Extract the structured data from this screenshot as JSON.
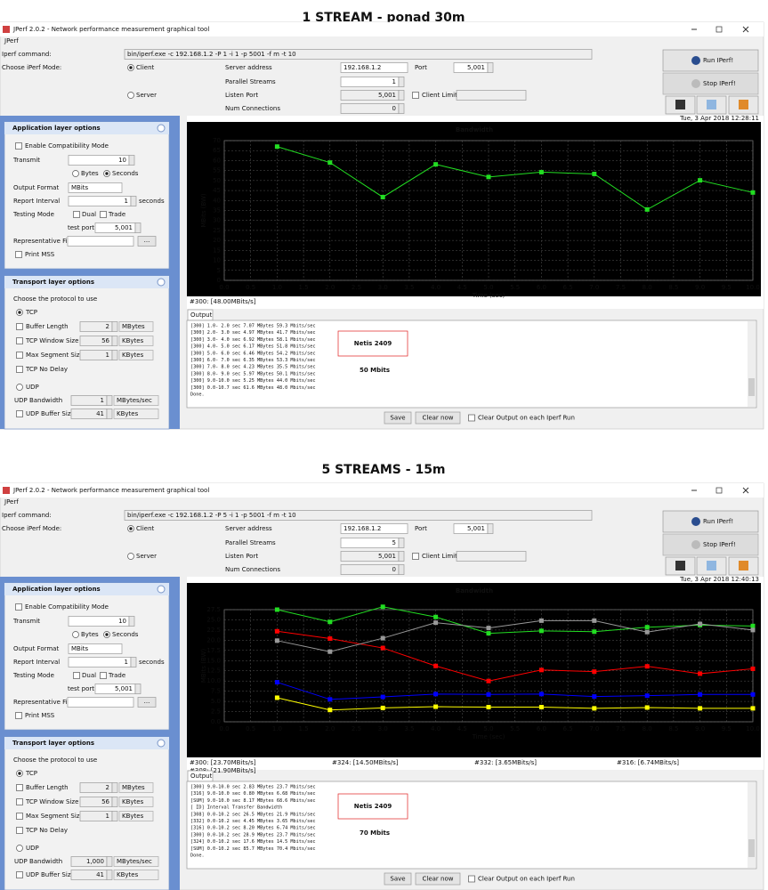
{
  "ui": {
    "app_title": "JPerf 2.0.2 - Network performance measurement graphical tool",
    "menu": "JPerf",
    "command_label": "Iperf command:",
    "mode_label": "Choose iPerf Mode:",
    "client": "Client",
    "server": "Server",
    "server_address": "Server address",
    "port": "Port",
    "parallel_streams": "Parallel Streams",
    "listen_port": "Listen Port",
    "client_limit": "Client Limit",
    "num_connections": "Num Connections",
    "run": "Run IPerf!",
    "stop": "Stop IPerf!",
    "app_layer": "Application layer options",
    "compat": "Enable Compatibility Mode",
    "transmit": "Transmit",
    "bytes": "Bytes",
    "seconds": "Seconds",
    "output_format": "Output Format",
    "mbits": "MBits",
    "report_interval": "Report Interval",
    "seconds_unit": "seconds",
    "testing_mode": "Testing Mode",
    "dual": "Dual",
    "trade": "Trade",
    "test_port": "test port",
    "rep_file": "Representative File",
    "browse": "...",
    "print_mss": "Print MSS",
    "transport": "Transport layer options",
    "choose_protocol": "Choose the protocol to use",
    "tcp": "TCP",
    "buffer_length": "Buffer Length",
    "tcp_window": "TCP Window Size",
    "max_segment": "Max Segment Size",
    "no_delay": "TCP No Delay",
    "udp": "UDP",
    "udp_bandwidth": "UDP Bandwidth",
    "udp_buffer": "UDP Buffer Size",
    "mbytes": "MBytes",
    "kbytes": "KBytes",
    "mbytes_sec": "MBytes/sec",
    "output_tab": "Output",
    "save": "Save",
    "clear": "Clear now",
    "clear_each": "Clear Output on each Iperf Run"
  },
  "windows": [
    {
      "heading": "1 STREAM - ponad 30m",
      "command": "bin/iperf.exe -c 192.168.1.2 -P 1 -i 1 -p 5001 -f m -t 10",
      "server_address": "192.168.1.2",
      "port": "5,001",
      "parallel_streams": "1",
      "listen_port": "5,001",
      "num_connections": "0",
      "transmit": "10",
      "report_interval": "1",
      "test_port": "5,001",
      "buffer_length": "2",
      "tcp_window": "56",
      "max_segment": "1",
      "udp_bandwidth": "1",
      "udp_buffer": "41",
      "timestamp": "Tue, 3 Apr 2018 12:28:11",
      "annotation": [
        "Netis 2409",
        "50 Mbits"
      ],
      "output": [
        "[300]  1.0- 2.0 sec  7.07 MBytes  59.3 Mbits/sec",
        "[300]  2.0- 3.0 sec  4.97 MBytes  41.7 Mbits/sec",
        "[300]  3.0- 4.0 sec  6.92 MBytes  58.1 Mbits/sec",
        "[300]  4.0- 5.0 sec  6.17 MBytes  51.8 Mbits/sec",
        "[300]  5.0- 6.0 sec  6.46 MBytes  54.2 Mbits/sec",
        "[300]  6.0- 7.0 sec  6.35 MBytes  53.3 Mbits/sec",
        "[300]  7.0- 8.0 sec  4.23 MBytes  35.5 Mbits/sec",
        "[300]  8.0- 9.0 sec  5.97 MBytes  50.1 Mbits/sec",
        "[300]  9.0-10.0 sec  5.25 MBytes  44.0 Mbits/sec",
        "[300]  0.0-10.7 sec  61.6 MBytes  48.0 Mbits/sec",
        "Done."
      ]
    },
    {
      "heading": "5 STREAMS - 15m",
      "command": "bin/iperf.exe -c 192.168.1.2 -P 5 -i 1 -p 5001 -f m -t 10",
      "server_address": "192.168.1.2",
      "port": "5,001",
      "parallel_streams": "5",
      "listen_port": "5,001",
      "num_connections": "0",
      "transmit": "10",
      "report_interval": "1",
      "test_port": "5,001",
      "buffer_length": "2",
      "tcp_window": "56",
      "max_segment": "1",
      "udp_bandwidth": "1,000",
      "udp_buffer": "41",
      "timestamp": "Tue, 3 Apr 2018 12:40:13",
      "annotation": [
        "Netis 2409",
        "70 Mbits"
      ],
      "output": [
        "[300]  9.0-10.0 sec  2.83 MBytes  23.7 Mbits/sec",
        "[316]  9.0-10.0 sec  0.80 MBytes  6.68 Mbits/sec",
        "[SUM]  9.0-10.0 sec  8.17 MBytes  68.6 Mbits/sec",
        "[ ID] Interval       Transfer     Bandwidth",
        "[308]  0.0-10.2 sec  26.5 MBytes  21.9 Mbits/sec",
        "[332]  0.0-10.2 sec  4.45 MBytes  3.65 Mbits/sec",
        "[316]  0.0-10.2 sec  8.20 MBytes  6.74 Mbits/sec",
        "[300]  0.0-10.2 sec  28.9 MBytes  23.7 Mbits/sec",
        "[324]  0.0-10.2 sec  17.6 MBytes  14.5 Mbits/sec",
        "[SUM]  0.0-10.2 sec  85.7 MBytes  70.4 Mbits/sec",
        "Done."
      ]
    }
  ],
  "chart_data": [
    {
      "type": "line",
      "title": "Bandwidth",
      "x_label": "Time (sec)",
      "y_label": "MBits (BW)",
      "grid": true,
      "legend": "bottom-left",
      "x": [
        1,
        2,
        3,
        4,
        5,
        6,
        7,
        8,
        9,
        10
      ],
      "xlim": [
        0,
        10
      ],
      "xticks": [
        {
          "value": 0,
          "label": "0.0"
        },
        {
          "value": 0.5,
          "label": "0.5"
        },
        {
          "value": 1,
          "label": "1.0"
        },
        {
          "value": 1.5,
          "label": "1.5"
        },
        {
          "value": 2,
          "label": "2.0"
        },
        {
          "value": 2.5,
          "label": "2.5"
        },
        {
          "value": 3,
          "label": "3.0"
        },
        {
          "value": 3.5,
          "label": "3.5"
        },
        {
          "value": 4,
          "label": "4.0"
        },
        {
          "value": 4.5,
          "label": "4.5"
        },
        {
          "value": 5,
          "label": "5.0"
        },
        {
          "value": 5.5,
          "label": "5.5"
        },
        {
          "value": 6,
          "label": "6.0"
        },
        {
          "value": 6.5,
          "label": "6.5"
        },
        {
          "value": 7,
          "label": "7.0"
        },
        {
          "value": 7.5,
          "label": "7.5"
        },
        {
          "value": 8,
          "label": "8.0"
        },
        {
          "value": 8.5,
          "label": "8.5"
        },
        {
          "value": 9,
          "label": "9.0"
        },
        {
          "value": 9.5,
          "label": "9.5"
        },
        {
          "value": 10,
          "label": "10.0"
        }
      ],
      "ylim": [
        0,
        70
      ],
      "yticks": [
        0,
        5,
        10,
        15,
        20,
        25,
        30,
        35,
        40,
        45,
        50,
        55,
        60,
        65,
        70
      ],
      "series": [
        {
          "name": "#300: [48.00MBits/s]",
          "color": "#22dd22",
          "values": [
            67,
            59,
            41.7,
            58.1,
            51.8,
            54.2,
            53.3,
            35.5,
            50.1,
            44.0
          ]
        }
      ]
    },
    {
      "type": "line",
      "title": "Bandwidth",
      "x_label": "Time (sec)",
      "y_label": "MBits (BW)",
      "grid": true,
      "legend": "bottom-left",
      "x": [
        1,
        2,
        3,
        4,
        5,
        6,
        7,
        8,
        9,
        10
      ],
      "xlim": [
        0,
        10
      ],
      "xticks": [
        {
          "value": 0,
          "label": "0.0"
        },
        {
          "value": 0.5,
          "label": "0.5"
        },
        {
          "value": 1,
          "label": "1.0"
        },
        {
          "value": 1.5,
          "label": "1.5"
        },
        {
          "value": 2,
          "label": "2.0"
        },
        {
          "value": 2.5,
          "label": "2.5"
        },
        {
          "value": 3,
          "label": "3.0"
        },
        {
          "value": 3.5,
          "label": "3.5"
        },
        {
          "value": 4,
          "label": "4.0"
        },
        {
          "value": 4.5,
          "label": "4.5"
        },
        {
          "value": 5,
          "label": "5.0"
        },
        {
          "value": 5.5,
          "label": "5.5"
        },
        {
          "value": 6,
          "label": "6.0"
        },
        {
          "value": 6.5,
          "label": "6.5"
        },
        {
          "value": 7,
          "label": "7.0"
        },
        {
          "value": 7.5,
          "label": "7.5"
        },
        {
          "value": 8,
          "label": "8.0"
        },
        {
          "value": 8.5,
          "label": "8.5"
        },
        {
          "value": 9,
          "label": "9.0"
        },
        {
          "value": 9.5,
          "label": "9.5"
        },
        {
          "value": 10,
          "label": "10.0"
        }
      ],
      "ylim": [
        0,
        27.5
      ],
      "yticks": [
        {
          "value": 0,
          "label": "0.0"
        },
        {
          "value": 2.5,
          "label": "2.5"
        },
        {
          "value": 5,
          "label": "5.0"
        },
        {
          "value": 7.5,
          "label": "7.5"
        },
        {
          "value": 10,
          "label": "10.0"
        },
        {
          "value": 12.5,
          "label": "12.5"
        },
        {
          "value": 15,
          "label": "15.0"
        },
        {
          "value": 17.5,
          "label": "17.5"
        },
        {
          "value": 20,
          "label": "20.0"
        },
        {
          "value": 22.5,
          "label": "22.5"
        },
        {
          "value": 25,
          "label": "25.0"
        },
        {
          "value": 27.5,
          "label": "27.5"
        }
      ],
      "series": [
        {
          "name": "#300: [23.70MBits/s]",
          "color": "#22dd22",
          "values": [
            27.5,
            24.5,
            28.2,
            25.7,
            21.7,
            22.3,
            22.1,
            23.2,
            23.7,
            23.5
          ]
        },
        {
          "name": "#324: [14.50MBits/s]",
          "color": "#ff0000",
          "values": [
            22.2,
            20.4,
            18.1,
            13.7,
            10.0,
            12.7,
            12.3,
            13.6,
            11.8,
            13.0
          ]
        },
        {
          "name": "#332: [3.65MBits/s]",
          "color": "#ffff00",
          "values": [
            5.9,
            2.9,
            3.4,
            3.7,
            3.6,
            3.6,
            3.3,
            3.5,
            3.3,
            3.3
          ]
        },
        {
          "name": "#316: [6.74MBits/s]",
          "color": "#0000ff",
          "values": [
            9.7,
            5.5,
            6.1,
            6.8,
            6.7,
            6.8,
            6.2,
            6.4,
            6.7,
            6.7
          ]
        },
        {
          "name": "#308: [21.90MBits/s]",
          "color": "#999999",
          "values": [
            19.9,
            17.2,
            20.5,
            24.3,
            23.0,
            24.8,
            24.8,
            22.0,
            24.0,
            22.5
          ]
        }
      ]
    }
  ]
}
